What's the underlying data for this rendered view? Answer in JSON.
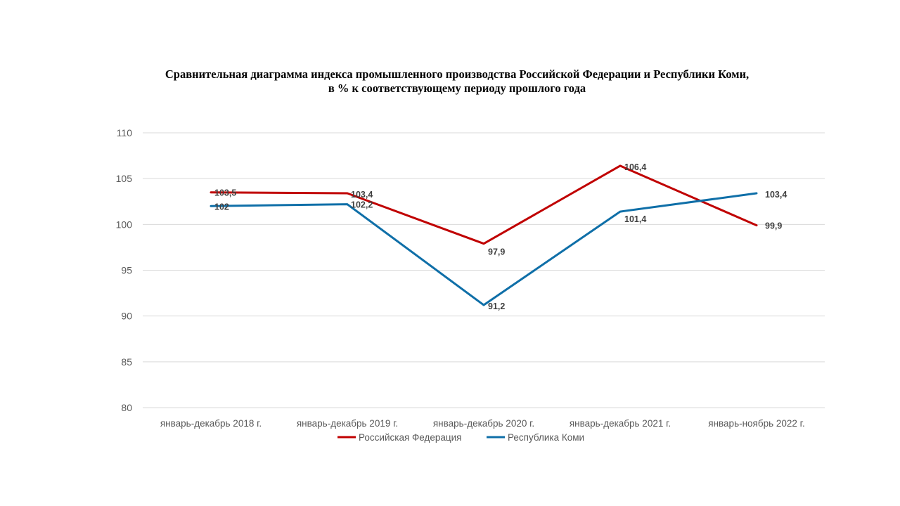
{
  "chart_data": {
    "type": "line",
    "title": "Сравнительная диаграмма индекса промышленного производства Российской Федерации и Республики Коми,",
    "subtitle": "в % к соответствующему периоду прошлого года",
    "categories": [
      "январь-декабрь 2018 г.",
      "январь-декабрь 2019 г.",
      "январь-декабрь 2020 г.",
      "январь-декабрь 2021 г.",
      "январь-ноябрь 2022 г."
    ],
    "series": [
      {
        "name": "Российская Федерация",
        "color": "#C00000",
        "values": [
          103.5,
          103.4,
          97.9,
          106.4,
          99.9
        ],
        "labels": [
          "103,5",
          "103,4",
          "97,9",
          "106,4",
          "99,9"
        ]
      },
      {
        "name": "Республика Коми",
        "color": "#0F6FA8",
        "values": [
          102,
          102.2,
          91.2,
          101.4,
          103.4
        ],
        "labels": [
          "102",
          "102,2",
          "91,2",
          "101,4",
          "103,4"
        ]
      }
    ],
    "ylim": [
      80,
      110
    ],
    "yticks": [
      80,
      85,
      90,
      95,
      100,
      105,
      110
    ],
    "ytick_labels": [
      "80",
      "85",
      "90",
      "95",
      "100",
      "105",
      "110"
    ],
    "grid": true,
    "legend": "bottom-center",
    "xlabel": "",
    "ylabel": ""
  }
}
